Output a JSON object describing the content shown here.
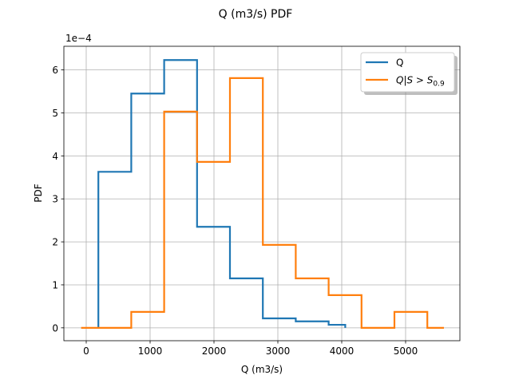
{
  "chart_data": {
    "type": "histogram",
    "title": "Q (m3/s) PDF",
    "xlabel": "Q (m3/s)",
    "ylabel": "PDF",
    "y_scale_label": "1e−4",
    "xlim": [
      -350,
      5850
    ],
    "ylim": [
      -0.3,
      6.55
    ],
    "xticks": [
      0,
      1000,
      2000,
      3000,
      4000,
      5000
    ],
    "yticks": [
      0,
      1,
      2,
      3,
      4,
      5,
      6
    ],
    "grid": true,
    "legend_position": "upper right",
    "series": [
      {
        "name": "Q",
        "color": "#1f77b4",
        "edges": [
          190,
          705,
          1220,
          1735,
          2250,
          2765,
          3280,
          3795,
          4055
        ],
        "values": [
          3.63,
          5.45,
          6.23,
          2.35,
          1.15,
          0.22,
          0.15,
          0.07
        ]
      },
      {
        "name": "Q|S > S_0.9",
        "color": "#ff7f0e",
        "edges": [
          -80,
          705,
          1220,
          1735,
          2250,
          2765,
          3280,
          3795,
          4310,
          4825,
          5340,
          5600
        ],
        "values": [
          0.0,
          0.37,
          5.03,
          3.86,
          5.81,
          1.93,
          1.15,
          0.76,
          0.0,
          0.37,
          0.0
        ]
      }
    ]
  },
  "legend": {
    "q_label": "Q",
    "cond_label_main": "Q|S > S",
    "cond_label_sub": "0.9"
  }
}
